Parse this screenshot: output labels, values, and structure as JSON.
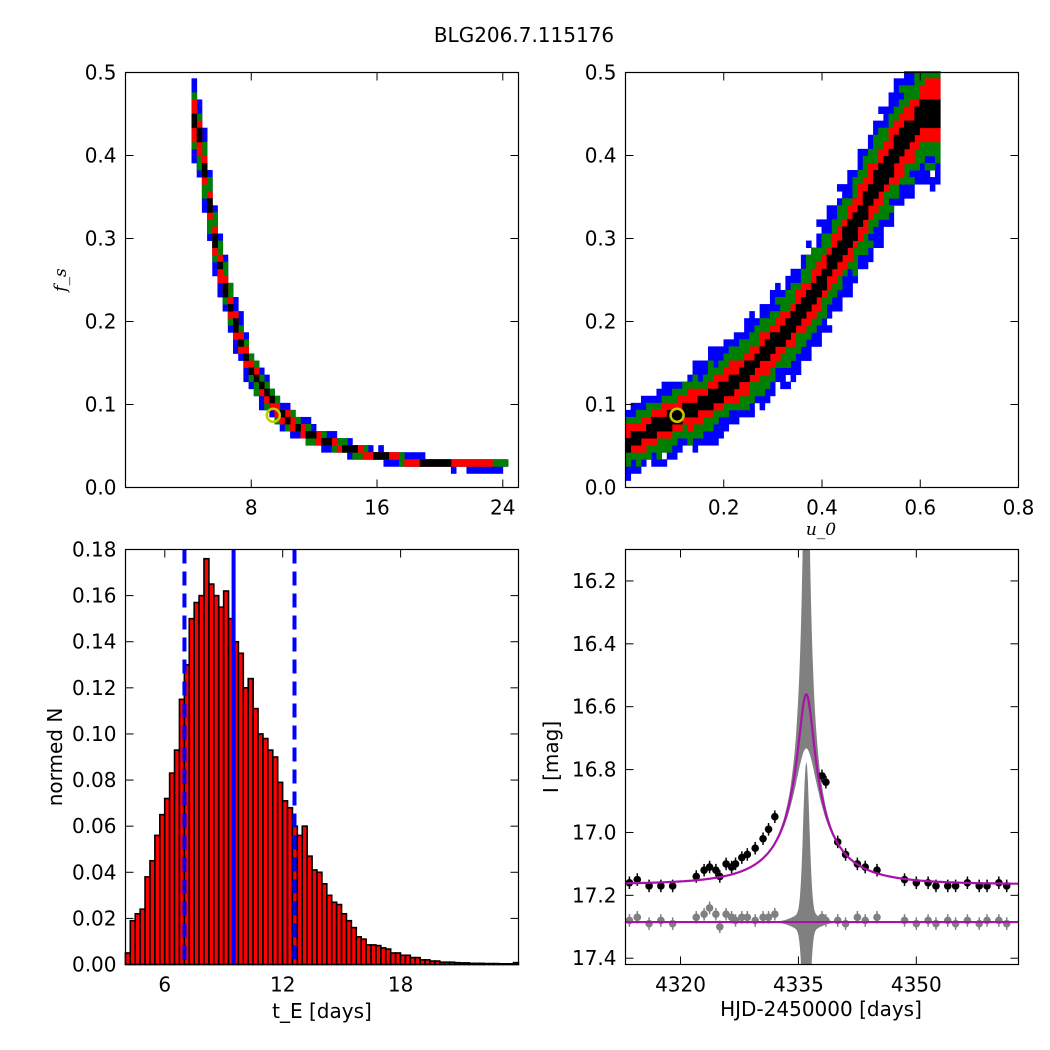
{
  "figure_title": "BLG206.7.115176",
  "colors": {
    "level_1": "#000000",
    "level_2": "#ff0000",
    "level_3": "#008000",
    "level_4": "#0000ff",
    "best_fit_marker": "#c8c800",
    "hist_bar": "#ff0000",
    "median_line": "#0000ff",
    "model_curve": "#aa11aa",
    "residual_gray": "#808080"
  },
  "chart_data": [
    {
      "id": "fs_vs_tE",
      "type": "heatmap",
      "title": "",
      "xlabel": "",
      "ylabel": "f_s",
      "xlim": [
        0,
        25
      ],
      "ylim": [
        0,
        0.5
      ],
      "xticks": [
        8,
        16,
        24
      ],
      "yticks": [
        0.0,
        0.1,
        0.2,
        0.3,
        0.4,
        0.5
      ],
      "best_fit": {
        "x": 9.4,
        "y": 0.087
      },
      "band_center": [
        [
          4.4,
          0.44
        ],
        [
          5.0,
          0.36
        ],
        [
          5.6,
          0.29
        ],
        [
          6.3,
          0.23
        ],
        [
          7.0,
          0.185
        ],
        [
          7.8,
          0.145
        ],
        [
          8.7,
          0.115
        ],
        [
          9.6,
          0.09
        ],
        [
          10.6,
          0.075
        ],
        [
          11.8,
          0.062
        ],
        [
          13.5,
          0.05
        ],
        [
          15.5,
          0.04
        ],
        [
          18.0,
          0.032
        ],
        [
          21.0,
          0.028
        ],
        [
          24.0,
          0.027
        ]
      ]
    },
    {
      "id": "fs_vs_u0",
      "type": "heatmap",
      "title": "",
      "xlabel": "u_0",
      "ylabel": "",
      "xlim": [
        0,
        0.8
      ],
      "ylim": [
        0,
        0.5
      ],
      "xticks": [
        0.2,
        0.4,
        0.6,
        0.8
      ],
      "yticks": [
        0.0,
        0.1,
        0.2,
        0.3,
        0.4,
        0.5
      ],
      "best_fit": {
        "x": 0.105,
        "y": 0.087
      },
      "band_center": [
        [
          0.0,
          0.055
        ],
        [
          0.05,
          0.07
        ],
        [
          0.1,
          0.085
        ],
        [
          0.15,
          0.1
        ],
        [
          0.2,
          0.12
        ],
        [
          0.25,
          0.145
        ],
        [
          0.3,
          0.175
        ],
        [
          0.35,
          0.21
        ],
        [
          0.4,
          0.255
        ],
        [
          0.45,
          0.305
        ],
        [
          0.5,
          0.36
        ],
        [
          0.55,
          0.41
        ],
        [
          0.6,
          0.45
        ]
      ]
    },
    {
      "id": "tE_histogram",
      "type": "bar",
      "title": "",
      "xlabel": "t_E [days]",
      "ylabel": "normed N",
      "xlim": [
        4,
        24
      ],
      "ylim": [
        0,
        0.18
      ],
      "xticks": [
        6,
        12,
        18
      ],
      "yticks": [
        0.0,
        0.02,
        0.04,
        0.06,
        0.08,
        0.1,
        0.12,
        0.14,
        0.16,
        0.18
      ],
      "bin_width": 0.25,
      "x": [
        4.12,
        4.37,
        4.62,
        4.87,
        5.12,
        5.37,
        5.62,
        5.87,
        6.12,
        6.37,
        6.62,
        6.87,
        7.12,
        7.37,
        7.62,
        7.87,
        8.12,
        8.37,
        8.62,
        8.87,
        9.12,
        9.37,
        9.62,
        9.87,
        10.12,
        10.37,
        10.62,
        10.87,
        11.12,
        11.37,
        11.62,
        11.87,
        12.12,
        12.37,
        12.62,
        12.87,
        13.12,
        13.37,
        13.62,
        13.87,
        14.12,
        14.37,
        14.62,
        14.87,
        15.12,
        15.37,
        15.62,
        15.87,
        16.12,
        16.37,
        16.62,
        16.87,
        17.12,
        17.37,
        17.62,
        17.87,
        18.12,
        18.37,
        18.62,
        18.87,
        19.12,
        19.37,
        19.62,
        19.87,
        20.12,
        20.37,
        20.62,
        20.87,
        21.12,
        21.37,
        21.62,
        21.87,
        22.12,
        22.37,
        22.62,
        22.87,
        23.12,
        23.37,
        23.62,
        23.87
      ],
      "values": [
        0.005,
        0.019,
        0.022,
        0.024,
        0.038,
        0.045,
        0.056,
        0.065,
        0.072,
        0.083,
        0.093,
        0.115,
        0.13,
        0.15,
        0.157,
        0.16,
        0.176,
        0.165,
        0.16,
        0.155,
        0.162,
        0.15,
        0.14,
        0.135,
        0.12,
        0.124,
        0.111,
        0.1,
        0.098,
        0.093,
        0.09,
        0.079,
        0.071,
        0.068,
        0.06,
        0.056,
        0.06,
        0.047,
        0.041,
        0.04,
        0.035,
        0.03,
        0.027,
        0.026,
        0.022,
        0.019,
        0.016,
        0.012,
        0.011,
        0.0085,
        0.0085,
        0.0082,
        0.0072,
        0.0067,
        0.005,
        0.005,
        0.004,
        0.004,
        0.003,
        0.003,
        0.002,
        0.002,
        0.0015,
        0.0015,
        0.001,
        0.001,
        0.001,
        0.0008,
        0.0007,
        0.0007,
        0.0005,
        0.0005,
        0.0005,
        0.0004,
        0.0004,
        0.0004,
        0.0003,
        0.0003,
        0.0003,
        0.0008
      ],
      "median": 9.5,
      "lower_bound": 7.0,
      "upper_bound": 12.6
    },
    {
      "id": "light_curve",
      "type": "scatter",
      "title": "",
      "xlabel": "HJD-2450000 [days]",
      "ylabel": "I [mag]",
      "xlim": [
        4313,
        4363
      ],
      "ylim": [
        17.42,
        16.1
      ],
      "xticks": [
        4320,
        4335,
        4350
      ],
      "yticks": [
        16.2,
        16.4,
        16.6,
        16.8,
        17.0,
        17.2,
        17.4
      ],
      "model": {
        "t0": 4336.0,
        "tE": 9.5,
        "u0": 0.105,
        "fs": 0.087,
        "I_base": 17.165
      },
      "data_points": [
        [
          4313.5,
          17.16
        ],
        [
          4314.5,
          17.15
        ],
        [
          4316,
          17.17
        ],
        [
          4317.5,
          17.17
        ],
        [
          4319,
          17.17
        ],
        [
          4322,
          17.14
        ],
        [
          4323,
          17.12
        ],
        [
          4323.7,
          17.11
        ],
        [
          4324.5,
          17.12
        ],
        [
          4325,
          17.14
        ],
        [
          4325.8,
          17.1
        ],
        [
          4326.5,
          17.11
        ],
        [
          4327,
          17.1
        ],
        [
          4327.8,
          17.08
        ],
        [
          4328.5,
          17.07
        ],
        [
          4329.5,
          17.05
        ],
        [
          4330.5,
          17.02
        ],
        [
          4331.2,
          16.99
        ],
        [
          4332,
          16.95
        ],
        [
          4338,
          16.82
        ],
        [
          4338.5,
          16.84
        ],
        [
          4340,
          17.03
        ],
        [
          4341,
          17.07
        ],
        [
          4342.5,
          17.1
        ],
        [
          4343.5,
          17.11
        ],
        [
          4345,
          17.12
        ],
        [
          4348.5,
          17.15
        ],
        [
          4350,
          17.16
        ],
        [
          4351.5,
          17.16
        ],
        [
          4352.5,
          17.17
        ],
        [
          4354,
          17.17
        ],
        [
          4355,
          17.17
        ],
        [
          4356.5,
          17.16
        ],
        [
          4358,
          17.17
        ],
        [
          4359,
          17.17
        ],
        [
          4360.5,
          17.16
        ],
        [
          4361.5,
          17.17
        ]
      ],
      "residual_points": [
        [
          4313.5,
          17.28
        ],
        [
          4314.5,
          17.27
        ],
        [
          4316,
          17.29
        ],
        [
          4317.5,
          17.28
        ],
        [
          4319,
          17.29
        ],
        [
          4322,
          17.27
        ],
        [
          4323,
          17.26
        ],
        [
          4323.7,
          17.24
        ],
        [
          4324.5,
          17.26
        ],
        [
          4325,
          17.3
        ],
        [
          4325.8,
          17.26
        ],
        [
          4326.5,
          17.27
        ],
        [
          4327,
          17.28
        ],
        [
          4327.8,
          17.27
        ],
        [
          4328.5,
          17.27
        ],
        [
          4329.5,
          17.28
        ],
        [
          4330.5,
          17.27
        ],
        [
          4331.2,
          17.27
        ],
        [
          4332,
          17.26
        ],
        [
          4338,
          17.27
        ],
        [
          4338.5,
          17.28
        ],
        [
          4340,
          17.28
        ],
        [
          4341,
          17.29
        ],
        [
          4342.5,
          17.27
        ],
        [
          4343.5,
          17.28
        ],
        [
          4345,
          17.27
        ],
        [
          4348.5,
          17.28
        ],
        [
          4350,
          17.29
        ],
        [
          4351.5,
          17.28
        ],
        [
          4352.5,
          17.29
        ],
        [
          4354,
          17.28
        ],
        [
          4355,
          17.29
        ],
        [
          4356.5,
          17.28
        ],
        [
          4358,
          17.29
        ],
        [
          4359,
          17.28
        ],
        [
          4360.5,
          17.28
        ],
        [
          4361.5,
          17.29
        ]
      ]
    }
  ]
}
